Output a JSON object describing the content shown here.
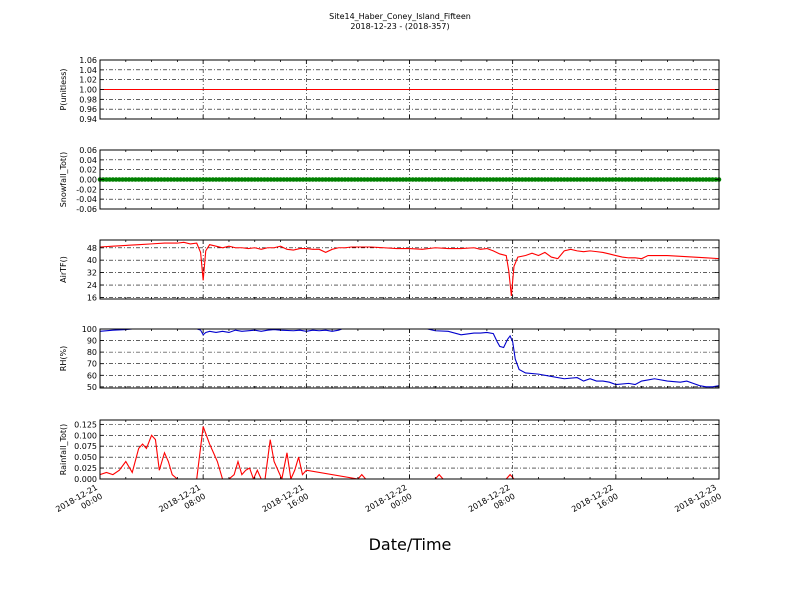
{
  "figure": {
    "title_line1": "Site14_Haber_Coney_Island_Fifteen",
    "title_line2": "2018-12-23 - (2018-357)",
    "xlabel": "Date/Time",
    "x_ticks": [
      {
        "x": 0,
        "line1": "2018-12-21",
        "line2": "00:00"
      },
      {
        "x": 8,
        "line1": "2018-12-21",
        "line2": "08:00"
      },
      {
        "x": 16,
        "line1": "2018-12-21",
        "line2": "16:00"
      },
      {
        "x": 24,
        "line1": "2018-12-22",
        "line2": "00:00"
      },
      {
        "x": 32,
        "line1": "2018-12-22",
        "line2": "08:00"
      },
      {
        "x": 40,
        "line1": "2018-12-22",
        "line2": "16:00"
      },
      {
        "x": 48,
        "line1": "2018-12-23",
        "line2": "00:00"
      }
    ]
  },
  "chart_data": [
    {
      "type": "line",
      "ylabel": "P(unitless)",
      "ylim": [
        0.94,
        1.06
      ],
      "yticks": [
        "0.94",
        "0.96",
        "0.98",
        "1.00",
        "1.02",
        "1.04",
        "1.06"
      ],
      "ytick_values": [
        0.94,
        0.96,
        0.98,
        1.0,
        1.02,
        1.04,
        1.06
      ],
      "color": "#ff0000",
      "marker": "none",
      "x": [
        0,
        48
      ],
      "y": [
        1.0,
        1.0
      ]
    },
    {
      "type": "line",
      "ylabel": "Snowfall_Tot()",
      "ylim": [
        -0.06,
        0.06
      ],
      "yticks": [
        "-0.06",
        "-0.04",
        "-0.02",
        "0.00",
        "0.02",
        "0.04",
        "0.06"
      ],
      "ytick_values": [
        -0.06,
        -0.04,
        -0.02,
        0.0,
        0.02,
        0.04,
        0.06
      ],
      "color": "#008000",
      "marker": "dot",
      "x": [
        0,
        48
      ],
      "y": [
        0.0,
        0.0
      ]
    },
    {
      "type": "line",
      "ylabel": "AirTF()",
      "ylim": [
        15,
        53
      ],
      "yticks": [
        "16",
        "24",
        "32",
        "40",
        "48"
      ],
      "ytick_values": [
        16,
        24,
        32,
        40,
        48
      ],
      "color": "#ff0000",
      "marker": "none",
      "x": [
        0,
        1,
        2,
        3,
        4,
        5,
        6,
        6.5,
        7,
        7.5,
        7.8,
        8,
        8.2,
        8.5,
        9,
        9.5,
        10,
        10.5,
        11,
        11.5,
        12,
        12.5,
        13,
        13.5,
        14,
        14.5,
        15,
        15.5,
        16,
        16.5,
        17,
        17.5,
        18,
        18.5,
        19,
        19.5,
        20,
        21,
        22,
        23,
        24,
        25,
        26,
        27,
        28,
        29,
        29.5,
        30,
        30.5,
        31,
        31.5,
        31.7,
        31.9,
        32.1,
        32.4,
        33,
        33.5,
        34,
        34.5,
        35,
        35.5,
        36,
        36.5,
        37,
        37.5,
        38,
        38.5,
        39,
        39.5,
        40,
        40.5,
        41,
        41.5,
        42,
        42.5,
        43,
        44,
        45,
        46,
        47,
        48
      ],
      "y": [
        48.5,
        49,
        49.5,
        50,
        50.5,
        51,
        51,
        51.5,
        50.5,
        51,
        45,
        27,
        46,
        50,
        49,
        48,
        49,
        48,
        48,
        47.5,
        48,
        47,
        48,
        48,
        49,
        47,
        46.5,
        47.5,
        47.5,
        47,
        47,
        45,
        47,
        48,
        48,
        48.5,
        48.5,
        48.5,
        48,
        47.5,
        47.5,
        47,
        48,
        47.5,
        47.5,
        48,
        47,
        47.5,
        46,
        44,
        43,
        33,
        17,
        36,
        42,
        43,
        44.5,
        43,
        45,
        42,
        41,
        46,
        47,
        46,
        45.5,
        46,
        45.5,
        45,
        44,
        43,
        42,
        41.5,
        41.5,
        41,
        43,
        43,
        43,
        42.5,
        42,
        41.5,
        41
      ]
    },
    {
      "type": "line",
      "ylabel": "RH(%)",
      "ylim": [
        49,
        100
      ],
      "yticks": [
        "50",
        "60",
        "70",
        "80",
        "90",
        "100"
      ],
      "ytick_values": [
        50,
        60,
        70,
        80,
        90,
        100
      ],
      "color": "#0000cc",
      "marker": "none",
      "x": [
        0,
        1,
        2,
        2.5,
        3,
        7,
        7.8,
        8,
        8.2,
        8.5,
        9,
        9.5,
        10,
        10.5,
        11,
        12,
        12.5,
        13,
        13.5,
        14,
        15,
        15.5,
        16,
        16.5,
        17,
        17.5,
        18,
        18.5,
        19,
        25,
        26,
        27,
        28,
        29,
        29.5,
        30,
        30.5,
        30.8,
        31,
        31.3,
        31.6,
        31.8,
        32,
        32.2,
        32.5,
        33,
        34,
        35,
        36,
        37,
        37.5,
        38,
        38.5,
        39,
        39.5,
        40,
        41,
        41.5,
        42,
        42.5,
        43,
        44,
        45,
        45.5,
        46,
        46.5,
        47,
        47.5,
        48
      ],
      "y": [
        98,
        99,
        99.5,
        100,
        102,
        102,
        99,
        95,
        97,
        98,
        97,
        98,
        97,
        99,
        98,
        99,
        98,
        99,
        99.5,
        99,
        98.5,
        99,
        98,
        99,
        98.5,
        99,
        98,
        99,
        101,
        101,
        98.5,
        98,
        95,
        96.5,
        96.5,
        97,
        96,
        89,
        85,
        84,
        91,
        94,
        89,
        74,
        65,
        62,
        61,
        59,
        57,
        58,
        55,
        57,
        55,
        55,
        54,
        52,
        53,
        52,
        55,
        56,
        57,
        55,
        54,
        55,
        53,
        51,
        50,
        50,
        51
      ]
    },
    {
      "type": "line",
      "ylabel": "Rainfall_Tot()",
      "ylim": [
        0,
        0.135
      ],
      "yticks": [
        "0.000",
        "0.025",
        "0.050",
        "0.075",
        "0.100",
        "0.125"
      ],
      "ytick_values": [
        0,
        0.025,
        0.05,
        0.075,
        0.1,
        0.125
      ],
      "color": "#ff0000",
      "marker": "none",
      "x": [
        0,
        0.5,
        1,
        1.5,
        2,
        2.5,
        3,
        3.3,
        3.6,
        4,
        4.3,
        4.6,
        5,
        5.3,
        5.6,
        6,
        6.5,
        7,
        7.5,
        8,
        8.5,
        8.8,
        9.1,
        9.5,
        10,
        10.4,
        10.7,
        11,
        11.3,
        11.6,
        11.9,
        12.2,
        12.5,
        12.8,
        13.2,
        13.5,
        13.8,
        14.1,
        14.5,
        14.8,
        15.1,
        15.4,
        15.7,
        16,
        20,
        20.3,
        20.6,
        26,
        26.3,
        26.6,
        31.5,
        31.8,
        32.1,
        48
      ],
      "y": [
        0.01,
        0.015,
        0.01,
        0.02,
        0.04,
        0.015,
        0.07,
        0.08,
        0.07,
        0.1,
        0.09,
        0.02,
        0.06,
        0.04,
        0.01,
        0.0,
        0.0,
        0.0,
        0.0,
        0.12,
        0.08,
        0.06,
        0.04,
        0.0,
        0.0,
        0.01,
        0.04,
        0.01,
        0.02,
        0.025,
        0.0,
        0.02,
        0.0,
        0.0,
        0.09,
        0.04,
        0.02,
        0.0,
        0.06,
        0.0,
        0.02,
        0.05,
        0.01,
        0.02,
        0.0,
        0.01,
        0.0,
        0.0,
        0.01,
        0.0,
        0.0,
        0.01,
        0.0,
        0.0
      ]
    }
  ]
}
